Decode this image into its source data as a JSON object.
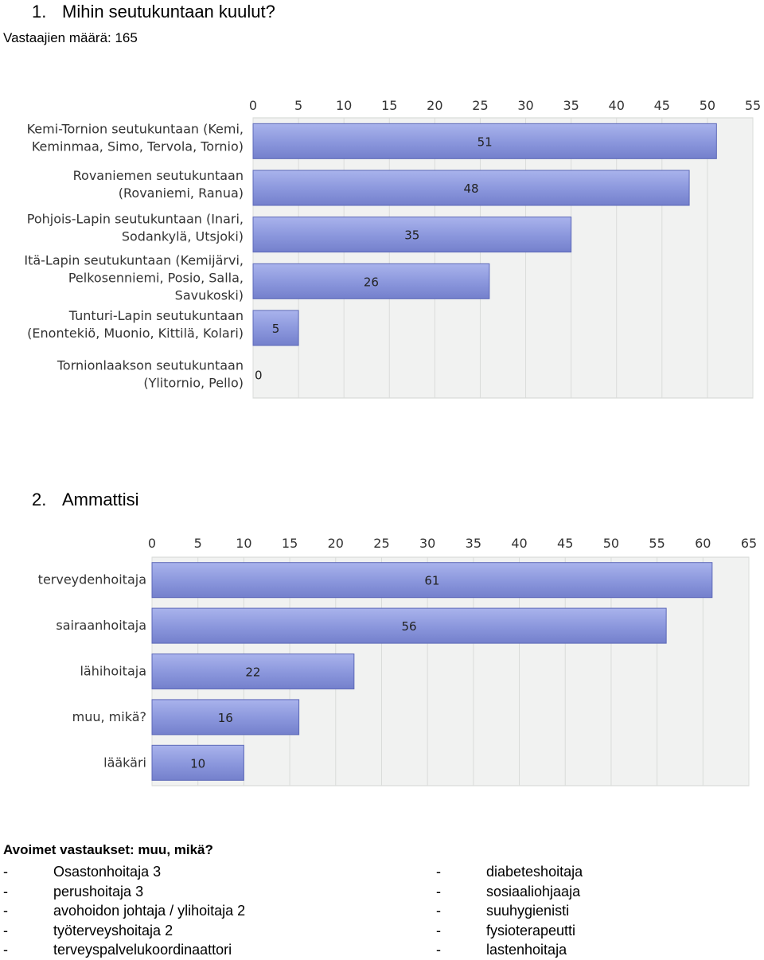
{
  "question1": {
    "number": "1.",
    "title": "Mihin seutukuntaan kuulut?",
    "respondents": "Vastaajien määrä: 165"
  },
  "question2": {
    "number": "2.",
    "title": "Ammattisi"
  },
  "chart_data": [
    {
      "type": "bar",
      "orientation": "horizontal",
      "categories": [
        [
          "Kemi-Tornion seutukuntaan (Kemi,",
          "Keminmaa, Simo, Tervola, Tornio)"
        ],
        [
          "Rovaniemen seutukuntaan",
          "(Rovaniemi, Ranua)"
        ],
        [
          "Pohjois-Lapin seutukuntaan (Inari,",
          "Sodankylä, Utsjoki)"
        ],
        [
          "Itä-Lapin seutukuntaan (Kemijärvi,",
          "Pelkosenniemi, Posio, Salla,",
          "Savukoski)"
        ],
        [
          "Tunturi-Lapin seutukuntaan",
          "(Enontekiö, Muonio, Kittilä, Kolari)"
        ],
        [
          "Tornionlaakson seutukuntaan",
          "(Ylitornio, Pello)"
        ]
      ],
      "values": [
        51,
        48,
        35,
        26,
        5,
        0
      ],
      "xticks": [
        "0",
        "5",
        "10",
        "15",
        "20",
        "25",
        "30",
        "35",
        "40",
        "45",
        "50",
        "55"
      ],
      "xlim": [
        0,
        55
      ],
      "grid": true,
      "bar_color": "#8a96dc",
      "bar_edge_color": "#5c68b8"
    },
    {
      "type": "bar",
      "orientation": "horizontal",
      "categories": [
        [
          "terveydenhoitaja"
        ],
        [
          "sairaanhoitaja"
        ],
        [
          "lähihoitaja"
        ],
        [
          "muu, mikä?"
        ],
        [
          "lääkäri"
        ]
      ],
      "values": [
        61,
        56,
        22,
        16,
        10
      ],
      "xticks": [
        "0",
        "5",
        "10",
        "15",
        "20",
        "25",
        "30",
        "35",
        "40",
        "45",
        "50",
        "55",
        "60",
        "65"
      ],
      "xlim": [
        0,
        65
      ],
      "grid": true,
      "bar_color": "#8a96dc",
      "bar_edge_color": "#5c68b8"
    }
  ],
  "open_answers": {
    "title": "Avoimet vastaukset: muu, mikä?",
    "dash": "-",
    "left": [
      "Osastonhoitaja 3",
      "perushoitaja 3",
      "avohoidon johtaja / ylihoitaja 2",
      "työterveyshoitaja 2",
      "terveyspalvelukoordinaattori"
    ],
    "right": [
      "diabeteshoitaja",
      "sosiaaliohjaaja",
      "suuhygienisti",
      "fysioterapeutti",
      "lastenhoitaja"
    ]
  }
}
